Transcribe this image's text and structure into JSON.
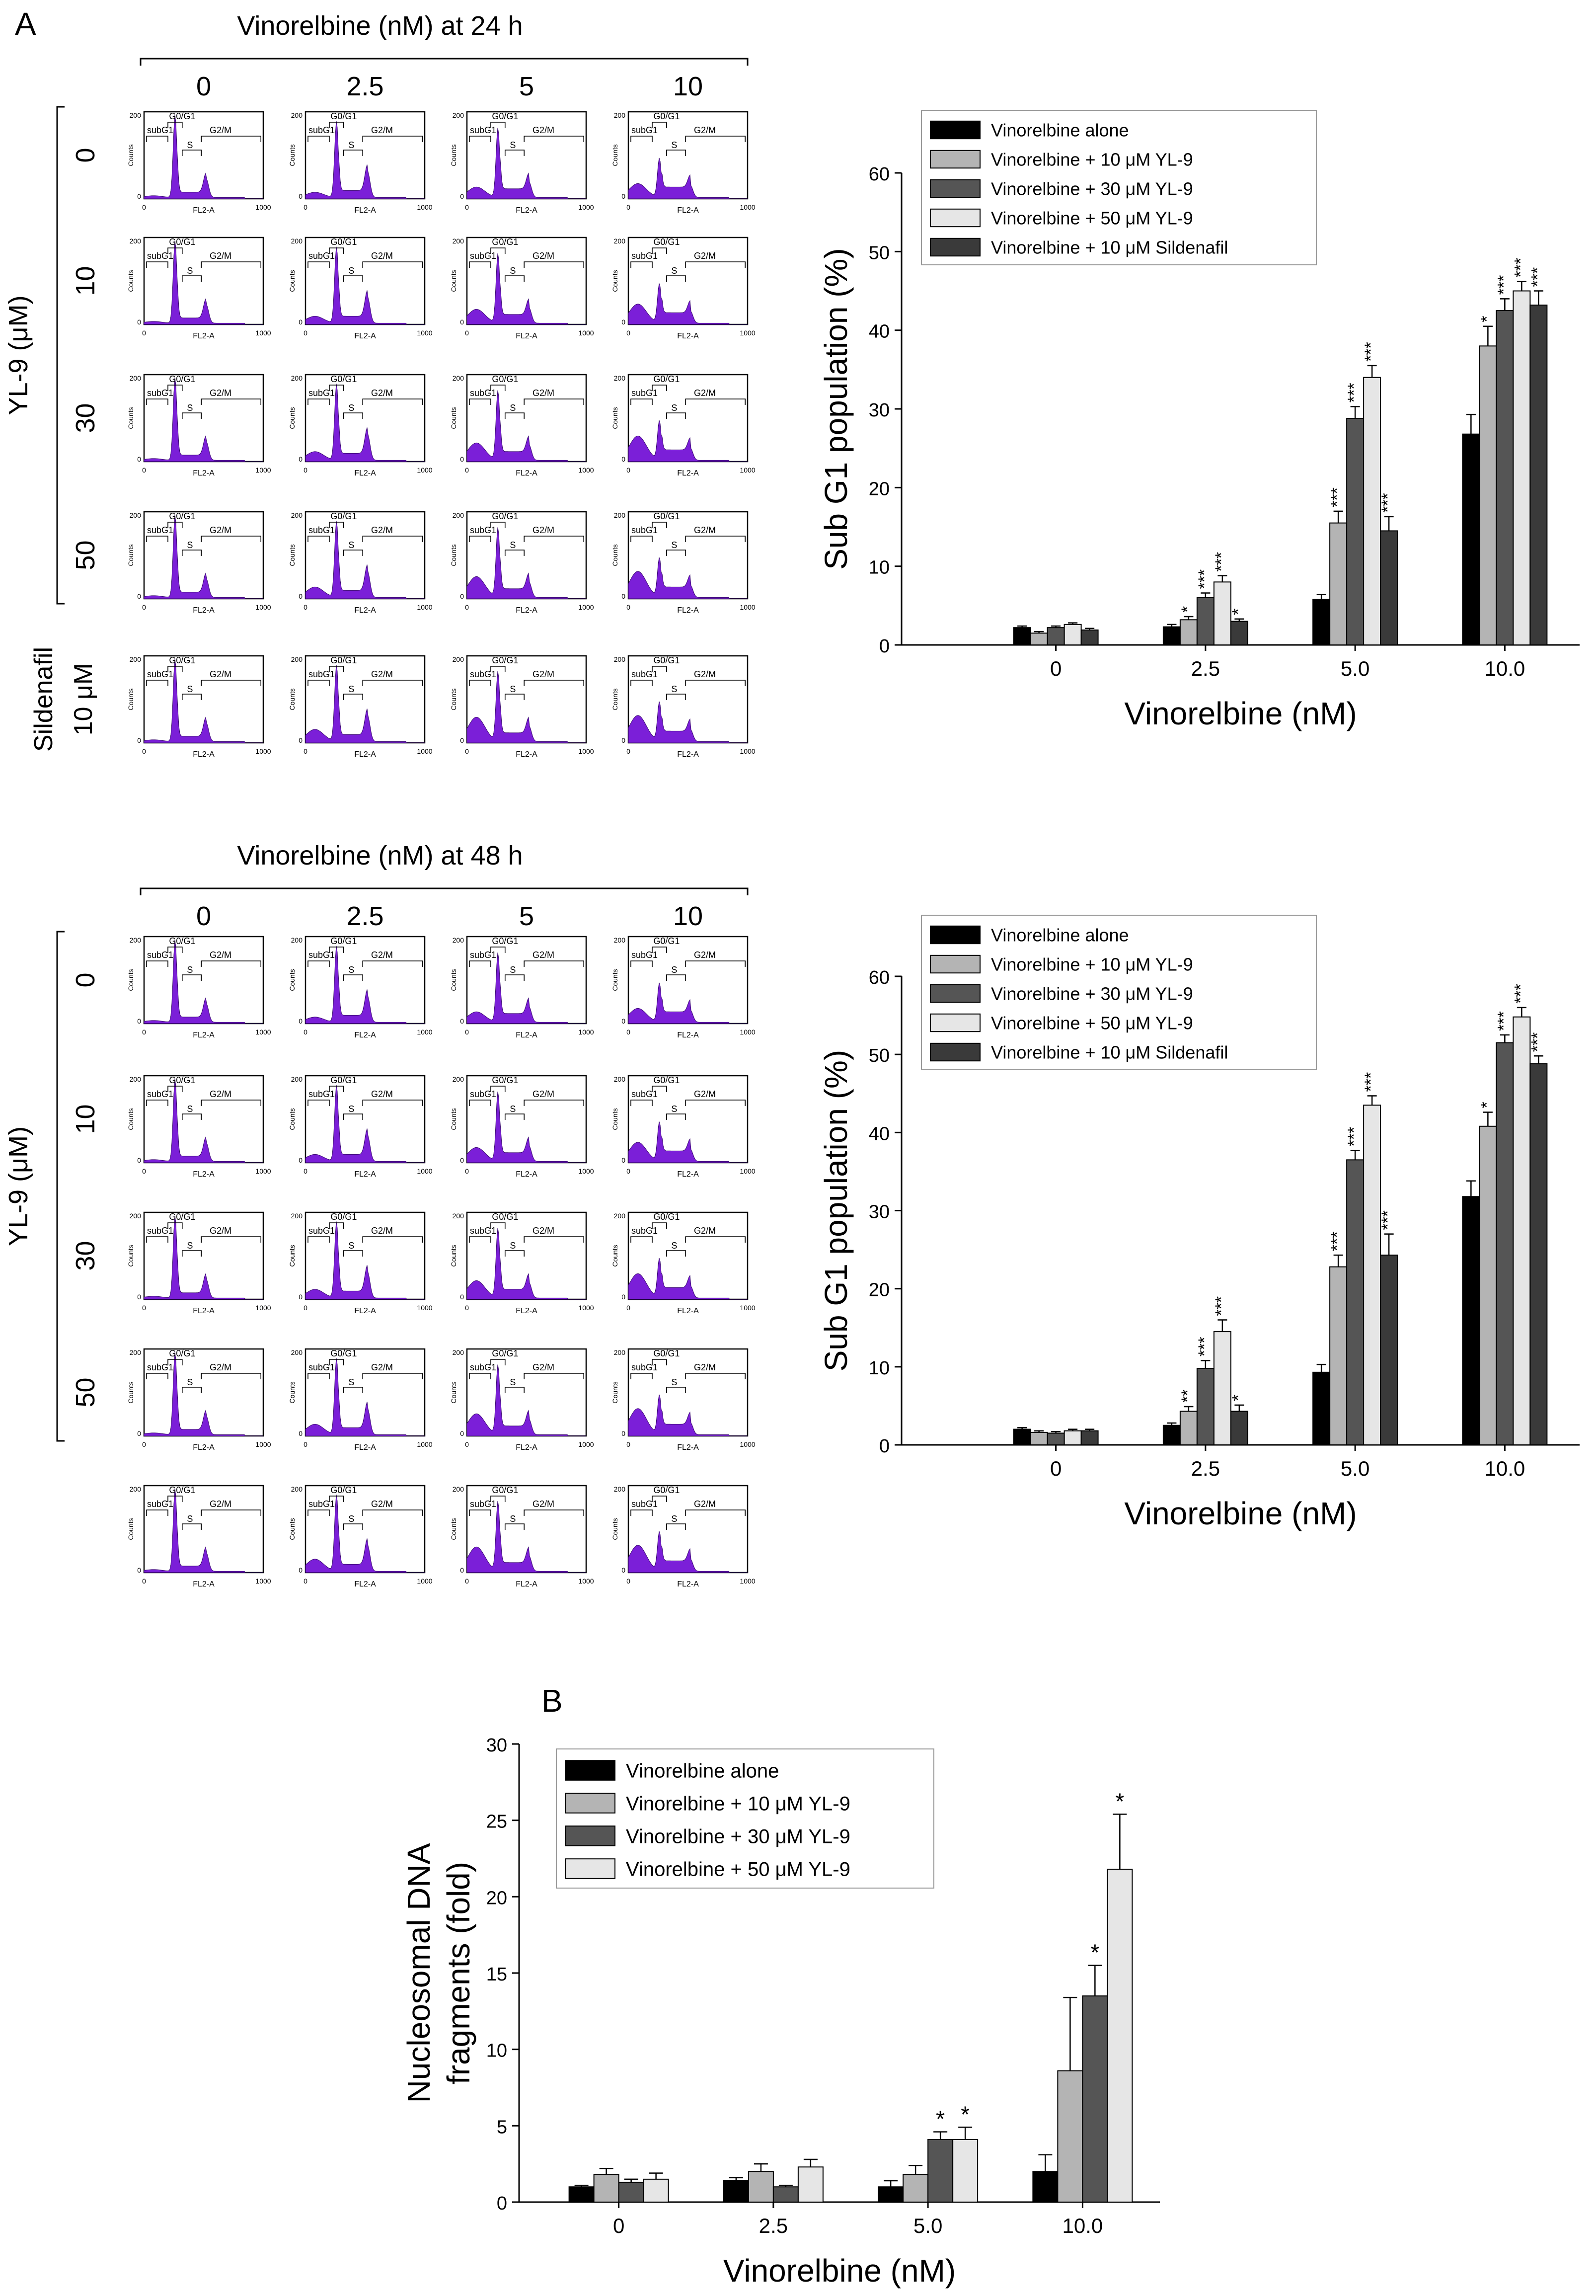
{
  "panel_labels": {
    "a": "A",
    "b": "B"
  },
  "flow": {
    "header_24h": "Vinorelbine (nM) at 24 h",
    "header_48h": "Vinorelbine (nM) at 48 h",
    "columns": [
      "0",
      "2.5",
      "5",
      "10"
    ],
    "rows_24h": [
      "0",
      "10",
      "30",
      "50"
    ],
    "rows_48h": [
      "0",
      "10",
      "30",
      "50"
    ],
    "group_label": "YL-9 (μM)",
    "sildenafil_line1": "Sildenafil",
    "sildenafil_line2": "10 μM",
    "histogram_color": "#7b1fd8",
    "plot_labels": {
      "y_axis": "Counts",
      "x_axis": "FL2-A",
      "x_ticks": [
        "0",
        "1000"
      ],
      "y_ticks": [
        "0",
        "200"
      ],
      "gates": [
        "subG1",
        "G0/G1",
        "S",
        "G2/M"
      ]
    }
  },
  "legend_colors": [
    "#000000",
    "#b4b4b4",
    "#555555",
    "#e6e6e6",
    "#3a3a3a"
  ],
  "chart_data": [
    {
      "type": "bar",
      "categories": [
        "0",
        "2.5",
        "5.0",
        "10.0"
      ],
      "xlabel": "Vinorelbine (nM)",
      "ylabel": "Sub G1 population (%)",
      "ylim": [
        0,
        60
      ],
      "yticks": [
        "0",
        "10",
        "20",
        "30",
        "40",
        "50",
        "60"
      ],
      "legend_position": "top-left",
      "series": [
        {
          "name": "Vinorelbine alone",
          "values": [
            2.2,
            2.3,
            5.8,
            26.8
          ],
          "errors": [
            0.2,
            0.3,
            0.6,
            2.5
          ],
          "sig": [
            "",
            "",
            "",
            ""
          ]
        },
        {
          "name": "Vinorelbine + 10 μM YL-9",
          "values": [
            1.5,
            3.2,
            15.5,
            38.0
          ],
          "errors": [
            0.2,
            0.4,
            1.5,
            2.5
          ],
          "sig": [
            "",
            "*",
            "***",
            "*"
          ]
        },
        {
          "name": "Vinorelbine + 30 μM YL-9",
          "values": [
            2.2,
            6.0,
            28.8,
            42.5
          ],
          "errors": [
            0.2,
            0.6,
            1.5,
            1.5
          ],
          "sig": [
            "",
            "***",
            "***",
            "***"
          ]
        },
        {
          "name": "Vinorelbine + 50 μM YL-9",
          "values": [
            2.6,
            8.0,
            34.0,
            45.0
          ],
          "errors": [
            0.2,
            0.8,
            1.5,
            1.2
          ],
          "sig": [
            "",
            "***",
            "***",
            "***"
          ]
        },
        {
          "name": "Vinorelbine + 10 μM Sildenafil",
          "values": [
            1.9,
            3.0,
            14.5,
            43.2
          ],
          "errors": [
            0.2,
            0.3,
            1.8,
            1.8
          ],
          "sig": [
            "",
            "*",
            "***",
            "***"
          ]
        }
      ]
    },
    {
      "type": "bar",
      "categories": [
        "0",
        "2.5",
        "5.0",
        "10.0"
      ],
      "xlabel": "Vinorelbine (nM)",
      "ylabel": "Sub G1 population (%)",
      "ylim": [
        0,
        60
      ],
      "yticks": [
        "0",
        "10",
        "20",
        "30",
        "40",
        "50",
        "60"
      ],
      "legend_position": "top-left",
      "series": [
        {
          "name": "Vinorelbine alone",
          "values": [
            2.0,
            2.5,
            9.3,
            31.8
          ],
          "errors": [
            0.2,
            0.3,
            1.0,
            2.0
          ],
          "sig": [
            "",
            "",
            "",
            ""
          ]
        },
        {
          "name": "Vinorelbine + 10 μM YL-9",
          "values": [
            1.6,
            4.3,
            22.8,
            40.8
          ],
          "errors": [
            0.2,
            0.6,
            1.5,
            1.8
          ],
          "sig": [
            "",
            "**",
            "***",
            "*"
          ]
        },
        {
          "name": "Vinorelbine + 30 μM YL-9",
          "values": [
            1.5,
            9.8,
            36.5,
            51.5
          ],
          "errors": [
            0.2,
            1.0,
            1.2,
            1.0
          ],
          "sig": [
            "",
            "***",
            "***",
            "***"
          ]
        },
        {
          "name": "Vinorelbine + 50 μM YL-9",
          "values": [
            1.8,
            14.5,
            43.5,
            54.8
          ],
          "errors": [
            0.2,
            1.5,
            1.2,
            1.2
          ],
          "sig": [
            "",
            "***",
            "***",
            "***"
          ]
        },
        {
          "name": "Vinorelbine + 10 μM Sildenafil",
          "values": [
            1.8,
            4.3,
            24.3,
            48.8
          ],
          "errors": [
            0.2,
            0.8,
            2.7,
            1.0
          ],
          "sig": [
            "",
            "*",
            "***",
            "***"
          ]
        }
      ]
    },
    {
      "type": "bar",
      "categories": [
        "0",
        "2.5",
        "5.0",
        "10.0"
      ],
      "xlabel": "Vinorelbine (nM)",
      "ylabel_line1": "Nucleosomal DNA",
      "ylabel_line2": "fragments (fold)",
      "ylim": [
        0,
        30
      ],
      "yticks": [
        "0",
        "5",
        "10",
        "15",
        "20",
        "25",
        "30"
      ],
      "legend_position": "top-left",
      "series": [
        {
          "name": "Vinorelbine alone",
          "values": [
            1.0,
            1.4,
            1.0,
            2.0
          ],
          "errors": [
            0.1,
            0.2,
            0.4,
            1.1
          ],
          "sig": [
            "",
            "",
            "",
            ""
          ]
        },
        {
          "name": "Vinorelbine + 10 μM YL-9",
          "values": [
            1.8,
            2.0,
            1.8,
            8.6
          ],
          "errors": [
            0.4,
            0.5,
            0.6,
            4.8
          ],
          "sig": [
            "",
            "",
            "",
            ""
          ]
        },
        {
          "name": "Vinorelbine + 30 μM YL-9",
          "values": [
            1.3,
            1.0,
            4.1,
            13.5
          ],
          "errors": [
            0.2,
            0.1,
            0.5,
            2.0
          ],
          "sig": [
            "",
            "",
            "*",
            "*"
          ]
        },
        {
          "name": "Vinorelbine + 50 μM YL-9",
          "values": [
            1.5,
            2.3,
            4.1,
            21.8
          ],
          "errors": [
            0.4,
            0.5,
            0.8,
            3.6
          ],
          "sig": [
            "",
            "",
            "*",
            "*"
          ]
        }
      ]
    }
  ]
}
